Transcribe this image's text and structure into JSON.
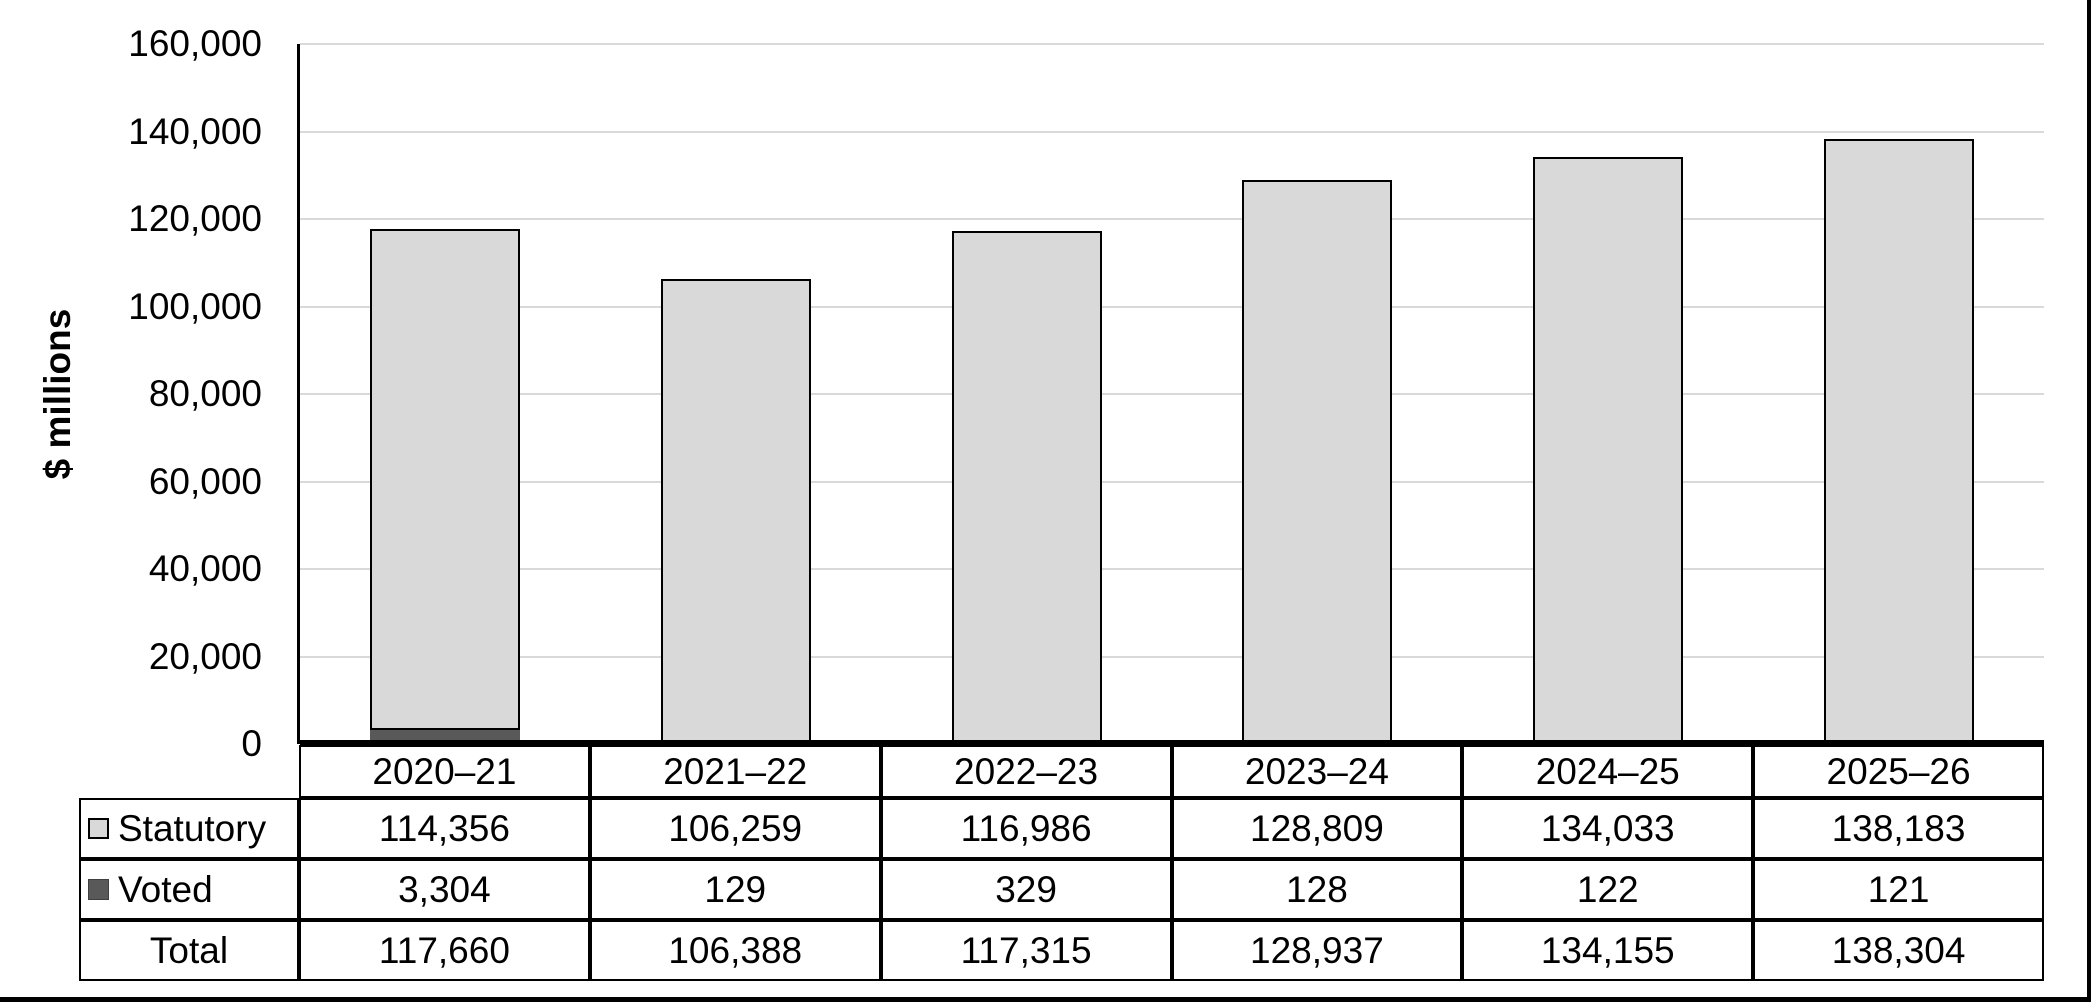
{
  "figure": {
    "ylabel": "$ millions",
    "colors": {
      "statutory_fill": "#d9d9d9",
      "voted_fill": "#595959",
      "bar_border": "#000000",
      "gridline": "#d9d9d9",
      "axis": "#000000",
      "text": "#000000"
    }
  },
  "chart_data": {
    "type": "bar",
    "stacked": true,
    "title": "",
    "xlabel": "",
    "ylabel": "$ millions",
    "categories": [
      "2020–21",
      "2021–22",
      "2022–23",
      "2023–24",
      "2024–25",
      "2025–26"
    ],
    "series": [
      {
        "name": "Statutory",
        "color": "#d9d9d9",
        "values": [
          114356,
          106259,
          116986,
          128809,
          134033,
          138183
        ]
      },
      {
        "name": "Voted",
        "color": "#595959",
        "values": [
          3304,
          129,
          329,
          128,
          122,
          121
        ]
      }
    ],
    "totals": [
      117660,
      106388,
      117315,
      128937,
      134155,
      138304
    ],
    "stack_order_bottom_to_top": [
      "Voted",
      "Statutory"
    ],
    "ylim": [
      0,
      160000
    ],
    "ytick_interval": 20000,
    "ytick_labels": [
      "0",
      "20,000",
      "40,000",
      "60,000",
      "80,000",
      "100,000",
      "120,000",
      "140,000",
      "160,000"
    ],
    "grid": true,
    "legend_position": "table-left-column"
  },
  "table": {
    "header": [
      "2020–21",
      "2021–22",
      "2022–23",
      "2023–24",
      "2024–25",
      "2025–26"
    ],
    "rows": [
      {
        "label": "Statutory",
        "swatch": "statutory",
        "values": [
          "114,356",
          "106,259",
          "116,986",
          "128,809",
          "134,033",
          "138,183"
        ]
      },
      {
        "label": "Voted",
        "swatch": "voted",
        "values": [
          "3,304",
          "129",
          "329",
          "128",
          "122",
          "121"
        ]
      },
      {
        "label": "Total",
        "swatch": null,
        "values": [
          "117,660",
          "106,388",
          "117,315",
          "128,937",
          "134,155",
          "138,304"
        ]
      }
    ]
  }
}
